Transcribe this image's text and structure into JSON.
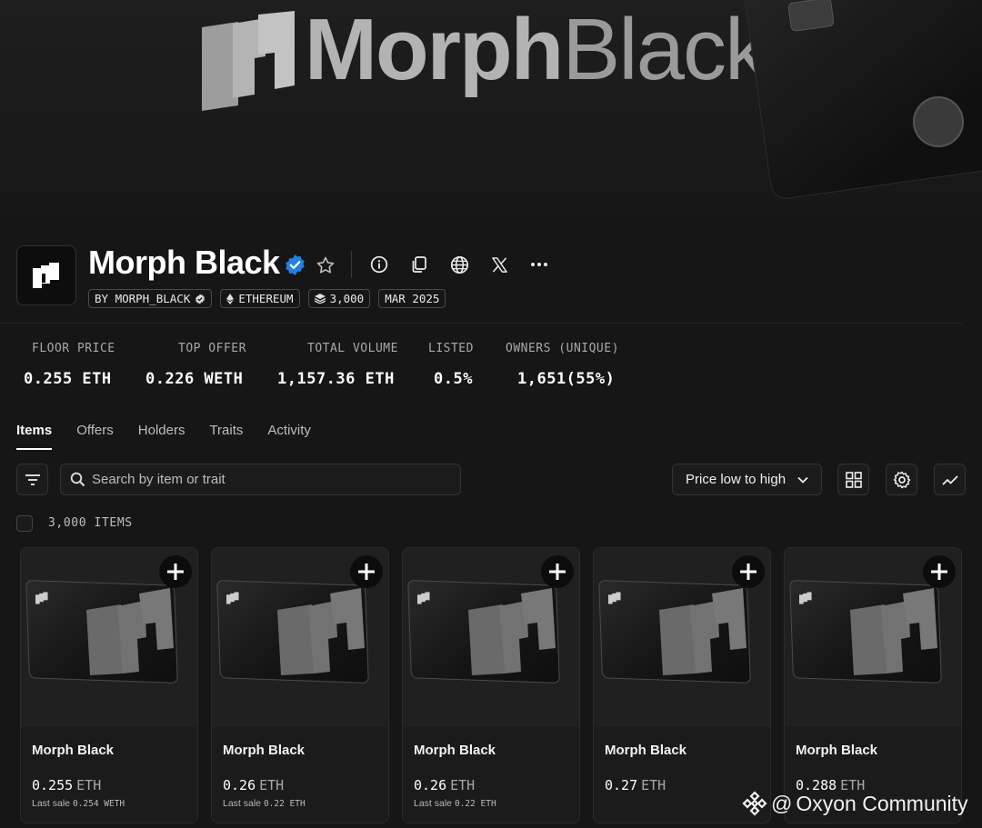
{
  "banner": {
    "word1": "Morph",
    "word2": "Black"
  },
  "collection": {
    "name": "Morph Black",
    "chips": {
      "creator": "BY MORPH_BLACK",
      "chain": "ETHEREUM",
      "supply": "3,000",
      "date": "MAR 2025"
    }
  },
  "header_icons": [
    "info-icon",
    "copy-icon",
    "globe-icon",
    "x-icon",
    "more-icon"
  ],
  "stats": [
    {
      "label": "FLOOR PRICE",
      "value": "0.255 ETH"
    },
    {
      "label": "TOP OFFER",
      "value": "0.226 WETH"
    },
    {
      "label": "TOTAL VOLUME",
      "value": "1,157.36 ETH"
    },
    {
      "label": "LISTED",
      "value": "0.5%"
    },
    {
      "label": "OWNERS (UNIQUE)",
      "value": "1,651(55%)"
    }
  ],
  "tabs": [
    "Items",
    "Offers",
    "Holders",
    "Traits",
    "Activity"
  ],
  "active_tab": "Items",
  "search": {
    "placeholder": "Search by item or trait"
  },
  "sort": {
    "label": "Price low to high"
  },
  "items_count": "3,000 ITEMS",
  "items": [
    {
      "name": "Morph Black",
      "price": "0.255",
      "currency": "ETH",
      "last_sale_label": "Last sale",
      "last_sale": "0.254 WETH"
    },
    {
      "name": "Morph Black",
      "price": "0.26",
      "currency": "ETH",
      "last_sale_label": "Last sale",
      "last_sale": "0.22 ETH"
    },
    {
      "name": "Morph Black",
      "price": "0.26",
      "currency": "ETH",
      "last_sale_label": "Last sale",
      "last_sale": "0.22 ETH"
    },
    {
      "name": "Morph Black",
      "price": "0.27",
      "currency": "ETH",
      "last_sale_label": "",
      "last_sale": ""
    },
    {
      "name": "Morph Black",
      "price": "0.288",
      "currency": "ETH",
      "last_sale_label": "",
      "last_sale": ""
    }
  ],
  "watermark": {
    "text": "Oxyon Community",
    "at": "@"
  },
  "colors": {
    "background": "#161616",
    "verified": "#2081e2",
    "text_muted": "#a8a8a8"
  }
}
